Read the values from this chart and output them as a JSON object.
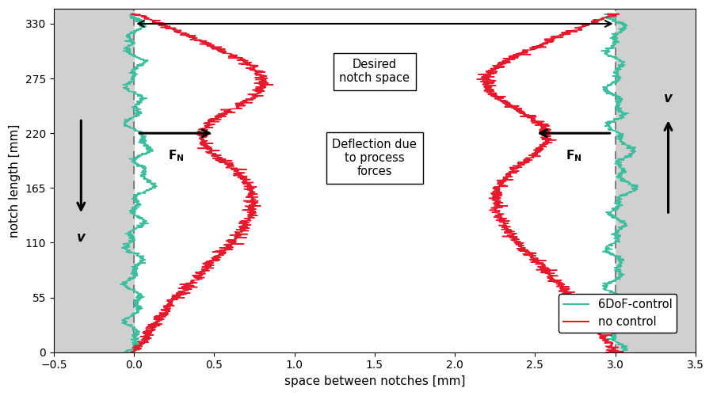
{
  "xlim": [
    -0.5,
    3.5
  ],
  "ylim": [
    0,
    345
  ],
  "xticks": [
    -0.5,
    0,
    0.5,
    1.0,
    1.5,
    2.0,
    2.5,
    3.0,
    3.5
  ],
  "yticks": [
    0,
    55,
    110,
    165,
    220,
    275,
    330
  ],
  "xlabel": "space between notches [mm]",
  "ylabel": "notch length [mm]",
  "dashed_left_x": 0.0,
  "dashed_right_x": 3.0,
  "shaded_color": "#d0d0d0",
  "line_green_color": "#3bbf9e",
  "line_red_color": "#e8192c",
  "fig_width": 9.0,
  "fig_height": 5.0,
  "dpi": 100
}
